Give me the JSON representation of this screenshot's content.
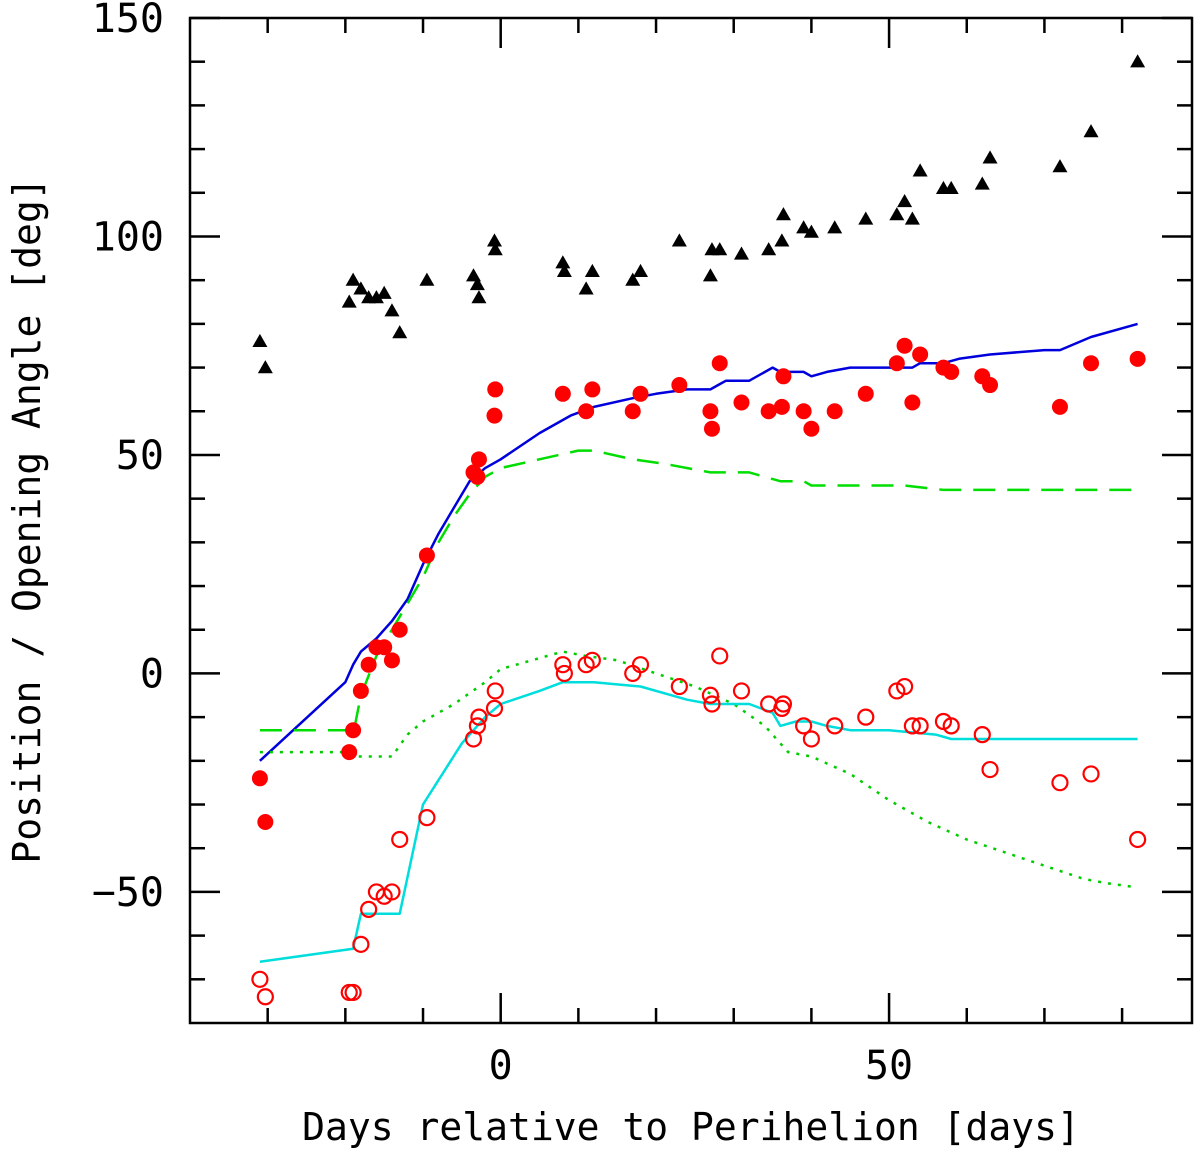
{
  "chart_data": {
    "type": "scatter",
    "title": "",
    "xlabel": "Days relative to Perihelion [days]",
    "ylabel": "Position / Opening Angle [deg]",
    "xlim": [
      -40,
      89
    ],
    "ylim": [
      -80,
      150
    ],
    "x_ticks": [
      0,
      50
    ],
    "y_ticks": [
      -50,
      0,
      50,
      100,
      150
    ],
    "grid": false,
    "series": [
      {
        "name": "black triangles",
        "kind": "markers",
        "marker": "triangle-filled",
        "color": "#000000",
        "points": [
          [
            -31,
            76
          ],
          [
            -30.3,
            70
          ],
          [
            -19.5,
            85
          ],
          [
            -19,
            90
          ],
          [
            -18,
            88
          ],
          [
            -17,
            86
          ],
          [
            -16,
            86
          ],
          [
            -15,
            87
          ],
          [
            -14,
            83
          ],
          [
            -13,
            78
          ],
          [
            -9.5,
            90
          ],
          [
            -3.5,
            91
          ],
          [
            -3,
            89
          ],
          [
            -2.8,
            86
          ],
          [
            -0.8,
            99
          ],
          [
            -0.7,
            97
          ],
          [
            8,
            94
          ],
          [
            8.2,
            92
          ],
          [
            11,
            88
          ],
          [
            11.8,
            92
          ],
          [
            17,
            90
          ],
          [
            18,
            92
          ],
          [
            23,
            99
          ],
          [
            27,
            91
          ],
          [
            27.2,
            97
          ],
          [
            28.2,
            97
          ],
          [
            31,
            96
          ],
          [
            34.5,
            97
          ],
          [
            36.2,
            99
          ],
          [
            36.4,
            105
          ],
          [
            39,
            102
          ],
          [
            40,
            101
          ],
          [
            43,
            102
          ],
          [
            47,
            104
          ],
          [
            51,
            105
          ],
          [
            52,
            108
          ],
          [
            53,
            104
          ],
          [
            54,
            115
          ],
          [
            57,
            111
          ],
          [
            58,
            111
          ],
          [
            62,
            112
          ],
          [
            63,
            118
          ],
          [
            72,
            116
          ],
          [
            76,
            124
          ],
          [
            82,
            140
          ]
        ]
      },
      {
        "name": "red filled circles",
        "kind": "markers",
        "marker": "circle-filled",
        "color": "#ff0000",
        "points": [
          [
            -31,
            -24
          ],
          [
            -30.3,
            -34
          ],
          [
            -19.5,
            -18
          ],
          [
            -19,
            -13
          ],
          [
            -18,
            -4
          ],
          [
            -17,
            2
          ],
          [
            -16,
            6
          ],
          [
            -15,
            6
          ],
          [
            -14,
            3
          ],
          [
            -13,
            10
          ],
          [
            -9.5,
            27
          ],
          [
            -3.5,
            46
          ],
          [
            -3,
            45
          ],
          [
            -2.8,
            49
          ],
          [
            -0.8,
            59
          ],
          [
            -0.7,
            65
          ],
          [
            8,
            64
          ],
          [
            11,
            60
          ],
          [
            11.8,
            65
          ],
          [
            17,
            60
          ],
          [
            18,
            64
          ],
          [
            23,
            66
          ],
          [
            27,
            60
          ],
          [
            27.2,
            56
          ],
          [
            28.2,
            71
          ],
          [
            31,
            62
          ],
          [
            34.5,
            60
          ],
          [
            36.2,
            61
          ],
          [
            36.4,
            68
          ],
          [
            39,
            60
          ],
          [
            40,
            56
          ],
          [
            43,
            60
          ],
          [
            47,
            64
          ],
          [
            51,
            71
          ],
          [
            52,
            75
          ],
          [
            53,
            62
          ],
          [
            54,
            73
          ],
          [
            57,
            70
          ],
          [
            58,
            69
          ],
          [
            62,
            68
          ],
          [
            63,
            66
          ],
          [
            72,
            61
          ],
          [
            76,
            71
          ],
          [
            82,
            72
          ]
        ]
      },
      {
        "name": "red open circles",
        "kind": "markers",
        "marker": "circle-open",
        "color": "#ff0000",
        "points": [
          [
            -31,
            -70
          ],
          [
            -30.3,
            -74
          ],
          [
            -19.5,
            -73
          ],
          [
            -19,
            -73
          ],
          [
            -18,
            -62
          ],
          [
            -17,
            -54
          ],
          [
            -16,
            -50
          ],
          [
            -15,
            -51
          ],
          [
            -14,
            -50
          ],
          [
            -13,
            -38
          ],
          [
            -9.5,
            -33
          ],
          [
            -3.5,
            -15
          ],
          [
            -3,
            -12
          ],
          [
            -2.8,
            -10
          ],
          [
            -0.8,
            -8
          ],
          [
            -0.7,
            -4
          ],
          [
            8,
            2
          ],
          [
            8.2,
            0
          ],
          [
            11,
            2
          ],
          [
            11.8,
            3
          ],
          [
            17,
            0
          ],
          [
            18,
            2
          ],
          [
            23,
            -3
          ],
          [
            27,
            -5
          ],
          [
            27.2,
            -7
          ],
          [
            28.2,
            4
          ],
          [
            31,
            -4
          ],
          [
            34.5,
            -7
          ],
          [
            36.2,
            -8
          ],
          [
            36.4,
            -7
          ],
          [
            39,
            -12
          ],
          [
            40,
            -15
          ],
          [
            43,
            -12
          ],
          [
            47,
            -10
          ],
          [
            51,
            -4
          ],
          [
            52,
            -3
          ],
          [
            53,
            -12
          ],
          [
            54,
            -12
          ],
          [
            57,
            -11
          ],
          [
            58,
            -12
          ],
          [
            62,
            -14
          ],
          [
            63,
            -22
          ],
          [
            72,
            -25
          ],
          [
            76,
            -23
          ],
          [
            82,
            -38
          ]
        ]
      },
      {
        "name": "blue solid line",
        "kind": "line",
        "style": "solid",
        "color": "#0000dd",
        "points": [
          [
            -31,
            -20
          ],
          [
            -20,
            -2
          ],
          [
            -19,
            2
          ],
          [
            -18,
            5
          ],
          [
            -16,
            8
          ],
          [
            -15,
            10
          ],
          [
            -14,
            12
          ],
          [
            -12,
            17
          ],
          [
            -10,
            25
          ],
          [
            -8,
            32
          ],
          [
            -6,
            38
          ],
          [
            -4,
            44
          ],
          [
            -2,
            47
          ],
          [
            0,
            49
          ],
          [
            5,
            55
          ],
          [
            9,
            59
          ],
          [
            12,
            61
          ],
          [
            17,
            63
          ],
          [
            20,
            64
          ],
          [
            24,
            65
          ],
          [
            27,
            65
          ],
          [
            28,
            66
          ],
          [
            29,
            67
          ],
          [
            32,
            67
          ],
          [
            35,
            70
          ],
          [
            36,
            69
          ],
          [
            39,
            69
          ],
          [
            40,
            68
          ],
          [
            42,
            69
          ],
          [
            45,
            70
          ],
          [
            50,
            70
          ],
          [
            53,
            70
          ],
          [
            54,
            71
          ],
          [
            57,
            71
          ],
          [
            59,
            72
          ],
          [
            63,
            73
          ],
          [
            70,
            74
          ],
          [
            72,
            74
          ],
          [
            76,
            77
          ],
          [
            82,
            80
          ]
        ]
      },
      {
        "name": "green dashed line",
        "kind": "line",
        "style": "dashed",
        "color": "#00dd00",
        "points": [
          [
            -31,
            -13
          ],
          [
            -20,
            -13
          ],
          [
            -19,
            -14
          ],
          [
            -18,
            -5
          ],
          [
            -16,
            4
          ],
          [
            -14,
            10
          ],
          [
            -12,
            16
          ],
          [
            -10,
            22
          ],
          [
            -8,
            30
          ],
          [
            -6,
            36
          ],
          [
            -4,
            41
          ],
          [
            -2,
            45
          ],
          [
            0,
            47
          ],
          [
            5,
            49
          ],
          [
            10,
            51
          ],
          [
            12,
            51
          ],
          [
            17,
            49
          ],
          [
            21,
            48
          ],
          [
            27,
            46
          ],
          [
            32,
            46
          ],
          [
            36,
            44
          ],
          [
            39,
            44
          ],
          [
            40,
            43
          ],
          [
            45,
            43
          ],
          [
            52,
            43
          ],
          [
            57,
            42
          ],
          [
            60,
            42
          ],
          [
            70,
            42
          ],
          [
            82,
            42
          ]
        ]
      },
      {
        "name": "green dotted line",
        "kind": "line",
        "style": "dotted",
        "color": "#00cc00",
        "points": [
          [
            -31,
            -18
          ],
          [
            -20,
            -18
          ],
          [
            -19,
            -19
          ],
          [
            -14,
            -19
          ],
          [
            -12,
            -14
          ],
          [
            -10,
            -11
          ],
          [
            -6,
            -7
          ],
          [
            -2,
            -2
          ],
          [
            0,
            1
          ],
          [
            4,
            3
          ],
          [
            8,
            5
          ],
          [
            11,
            4
          ],
          [
            15,
            3
          ],
          [
            20,
            0
          ],
          [
            25,
            -3
          ],
          [
            30,
            -7
          ],
          [
            34,
            -12
          ],
          [
            36,
            -16
          ],
          [
            37,
            -18
          ],
          [
            40,
            -19
          ],
          [
            45,
            -23
          ],
          [
            50,
            -29
          ],
          [
            55,
            -34
          ],
          [
            60,
            -38
          ],
          [
            65,
            -41
          ],
          [
            70,
            -44
          ],
          [
            75,
            -47
          ],
          [
            78,
            -48
          ],
          [
            82,
            -49
          ]
        ]
      },
      {
        "name": "cyan solid line",
        "kind": "line",
        "style": "solid",
        "color": "#00dddd",
        "points": [
          [
            -31,
            -66
          ],
          [
            -19,
            -63
          ],
          [
            -18,
            -55
          ],
          [
            -13,
            -55
          ],
          [
            -10,
            -30
          ],
          [
            -5,
            -16
          ],
          [
            -2,
            -10
          ],
          [
            0,
            -7
          ],
          [
            5,
            -4
          ],
          [
            8,
            -2
          ],
          [
            12,
            -2
          ],
          [
            18,
            -3
          ],
          [
            24,
            -6
          ],
          [
            27,
            -7
          ],
          [
            30,
            -7
          ],
          [
            32,
            -7
          ],
          [
            35,
            -9
          ],
          [
            36,
            -12
          ],
          [
            38,
            -11
          ],
          [
            40,
            -11
          ],
          [
            42,
            -12
          ],
          [
            45,
            -13
          ],
          [
            50,
            -13
          ],
          [
            56,
            -14
          ],
          [
            58,
            -15
          ],
          [
            62,
            -15
          ],
          [
            70,
            -15
          ],
          [
            82,
            -15
          ]
        ]
      }
    ]
  }
}
